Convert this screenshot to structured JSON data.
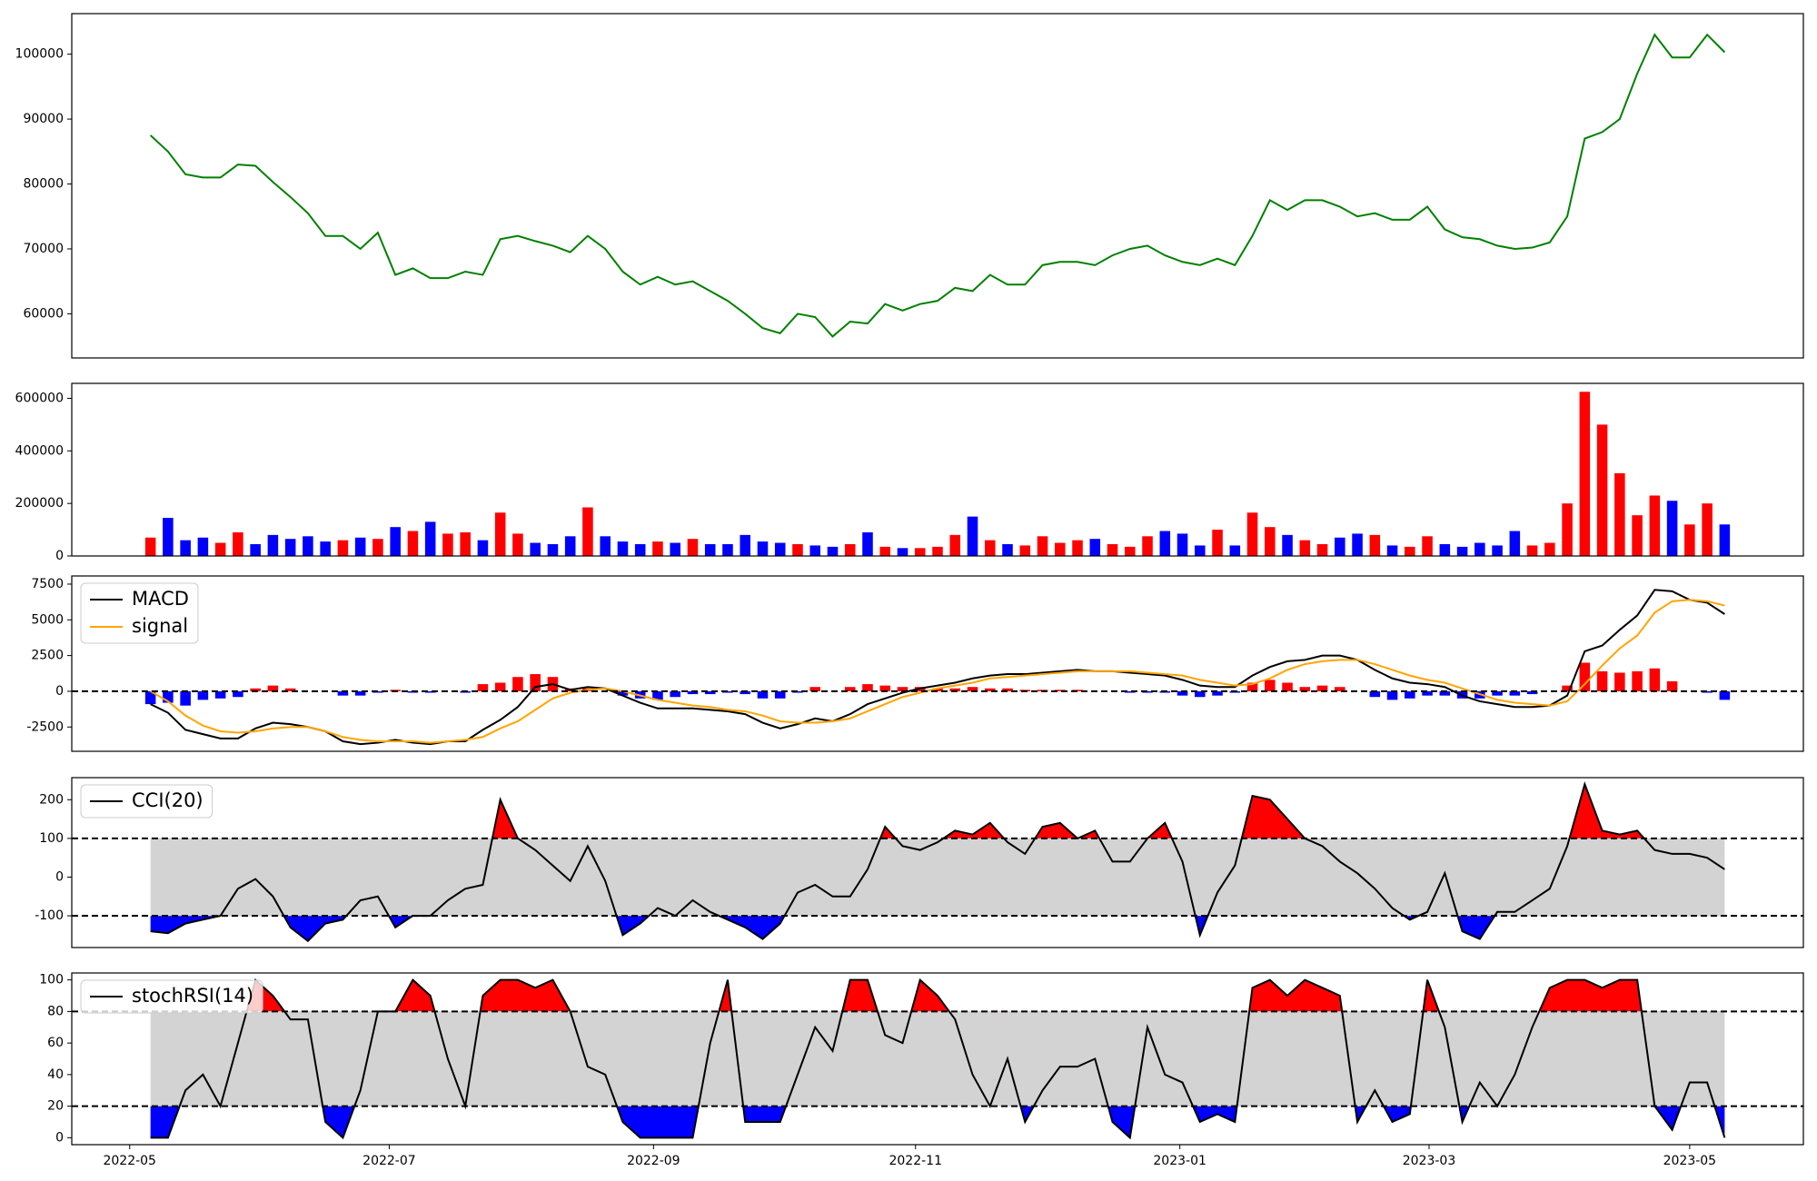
{
  "chart_data": [
    {
      "type": "line",
      "color": "green",
      "xlim": [
        -4.5,
        94.5
      ],
      "ylim": [
        53200,
        106250
      ],
      "yticks": [
        60000,
        70000,
        80000,
        90000,
        100000
      ],
      "values": [
        87500,
        85000,
        81500,
        81000,
        81000,
        83000,
        82800,
        80300,
        78000,
        75500,
        72000,
        72000,
        70000,
        72500,
        66000,
        67000,
        65500,
        65500,
        66500,
        66000,
        71500,
        72000,
        71200,
        70500,
        69500,
        72000,
        70000,
        66500,
        64500,
        65700,
        64500,
        65000,
        63500,
        62000,
        60000,
        57800,
        57000,
        60000,
        59500,
        56500,
        58800,
        58500,
        61500,
        60500,
        61500,
        62000,
        64000,
        63500,
        66000,
        64500,
        64500,
        67500,
        68000,
        68000,
        67500,
        69000,
        70000,
        70500,
        69000,
        68000,
        67500,
        68500,
        67500,
        72000,
        77500,
        76000,
        77500,
        77500,
        76500,
        75000,
        75500,
        74500,
        74500,
        76500,
        73000,
        71800,
        71500,
        70500,
        70000,
        70200,
        71000,
        75000,
        87000,
        88000,
        90000,
        97000,
        103000,
        99500,
        99500,
        103000,
        100300
      ]
    },
    {
      "type": "bar",
      "xlim": [
        -4.5,
        94.5
      ],
      "ylim": [
        0,
        657000
      ],
      "yticks": [
        0,
        200000,
        400000,
        600000
      ],
      "values": [
        70000,
        145000,
        60000,
        70000,
        50000,
        90000,
        45000,
        80000,
        65000,
        75000,
        55000,
        60000,
        70000,
        65000,
        110000,
        95000,
        130000,
        85000,
        90000,
        60000,
        165000,
        85000,
        50000,
        45000,
        75000,
        185000,
        75000,
        55000,
        45000,
        55000,
        50000,
        65000,
        45000,
        45000,
        80000,
        55000,
        50000,
        45000,
        40000,
        35000,
        45000,
        90000,
        35000,
        30000,
        30000,
        35000,
        80000,
        150000,
        60000,
        45000,
        40000,
        75000,
        50000,
        60000,
        65000,
        45000,
        35000,
        75000,
        95000,
        85000,
        40000,
        100000,
        40000,
        165000,
        110000,
        80000,
        60000,
        45000,
        70000,
        85000,
        80000,
        40000,
        35000,
        75000,
        45000,
        35000,
        50000,
        40000,
        95000,
        40000,
        50000,
        200000,
        625000,
        500000,
        315000,
        155000,
        230000,
        210000,
        120000,
        200000,
        120000
      ],
      "colors": [
        "red",
        "blue",
        "blue",
        "blue",
        "red",
        "red",
        "blue",
        "blue",
        "blue",
        "blue",
        "blue",
        "red",
        "blue",
        "red",
        "blue",
        "red",
        "blue",
        "red",
        "red",
        "blue",
        "red",
        "red",
        "blue",
        "blue",
        "blue",
        "red",
        "blue",
        "blue",
        "blue",
        "red",
        "blue",
        "red",
        "blue",
        "blue",
        "blue",
        "blue",
        "blue",
        "red",
        "blue",
        "blue",
        "red",
        "blue",
        "red",
        "blue",
        "red",
        "red",
        "red",
        "blue",
        "red",
        "blue",
        "red",
        "red",
        "red",
        "red",
        "blue",
        "red",
        "red",
        "red",
        "blue",
        "blue",
        "blue",
        "red",
        "blue",
        "red",
        "red",
        "blue",
        "red",
        "red",
        "blue",
        "blue",
        "red",
        "blue",
        "red",
        "red",
        "blue",
        "blue",
        "blue",
        "blue",
        "blue",
        "red",
        "red",
        "red",
        "red",
        "red",
        "red",
        "red",
        "red",
        "blue",
        "red",
        "red",
        "blue"
      ]
    },
    {
      "type": "line",
      "xlim": [
        -4.5,
        94.5
      ],
      "ylim": [
        -4200,
        8070
      ],
      "yticks": [
        -2500,
        0,
        2500,
        5000,
        7500
      ],
      "legend": "upper left",
      "levels": [
        0
      ],
      "series": [
        {
          "name": "MACD",
          "color": "black",
          "values": [
            -900,
            -1500,
            -2700,
            -3000,
            -3300,
            -3300,
            -2600,
            -2200,
            -2300,
            -2500,
            -2800,
            -3500,
            -3700,
            -3600,
            -3400,
            -3600,
            -3700,
            -3500,
            -3500,
            -2700,
            -2000,
            -1100,
            300,
            500,
            100,
            300,
            200,
            -300,
            -800,
            -1200,
            -1200,
            -1200,
            -1300,
            -1400,
            -1600,
            -2200,
            -2600,
            -2300,
            -1900,
            -2100,
            -1600,
            -900,
            -500,
            -100,
            200,
            400,
            600,
            900,
            1100,
            1200,
            1200,
            1300,
            1400,
            1500,
            1400,
            1400,
            1300,
            1200,
            1100,
            800,
            400,
            300,
            300,
            1100,
            1700,
            2100,
            2200,
            2500,
            2500,
            2200,
            1500,
            900,
            600,
            500,
            300,
            -300,
            -700,
            -900,
            -1100,
            -1100,
            -1000,
            -300,
            2800,
            3200,
            4300,
            5300,
            7100,
            7000,
            6400,
            6200,
            5400
          ]
        },
        {
          "name": "signal",
          "color": "orange",
          "values": [
            0,
            -700,
            -1700,
            -2400,
            -2800,
            -2900,
            -2800,
            -2600,
            -2500,
            -2500,
            -2800,
            -3200,
            -3400,
            -3500,
            -3500,
            -3500,
            -3600,
            -3500,
            -3400,
            -3200,
            -2600,
            -2100,
            -1300,
            -500,
            -100,
            100,
            200,
            0,
            -300,
            -600,
            -800,
            -1000,
            -1100,
            -1300,
            -1400,
            -1700,
            -2100,
            -2200,
            -2200,
            -2100,
            -1900,
            -1400,
            -900,
            -400,
            -100,
            200,
            400,
            600,
            900,
            1000,
            1100,
            1200,
            1300,
            1400,
            1400,
            1400,
            1400,
            1300,
            1200,
            1100,
            800,
            600,
            400,
            500,
            900,
            1500,
            1900,
            2100,
            2200,
            2200,
            1900,
            1500,
            1100,
            800,
            600,
            200,
            -200,
            -600,
            -800,
            -900,
            -1000,
            -700,
            500,
            1800,
            3000,
            3900,
            5500,
            6300,
            6400,
            6300,
            6000
          ]
        }
      ],
      "histogram": {
        "up_color": "red",
        "down_color": "blue",
        "values": [
          -900,
          -800,
          -1000,
          -600,
          -500,
          -400,
          200,
          400,
          200,
          0,
          0,
          -300,
          -300,
          -100,
          100,
          -100,
          -100,
          0,
          -100,
          500,
          600,
          1000,
          1200,
          1000,
          200,
          200,
          0,
          -300,
          -500,
          -600,
          -400,
          -200,
          -200,
          -100,
          -200,
          -500,
          -500,
          -100,
          300,
          0,
          300,
          500,
          400,
          300,
          300,
          200,
          200,
          300,
          200,
          200,
          100,
          100,
          100,
          100,
          0,
          0,
          -100,
          -100,
          -100,
          -300,
          -400,
          -300,
          -100,
          600,
          800,
          600,
          300,
          400,
          300,
          0,
          -400,
          -600,
          -500,
          -300,
          -300,
          -500,
          -500,
          -300,
          -300,
          -200,
          0,
          400,
          2000,
          1400,
          1300,
          1400,
          1600,
          700,
          0,
          -100,
          -600
        ]
      }
    },
    {
      "type": "line",
      "xlim": [
        -4.5,
        94.5
      ],
      "ylim": [
        -182,
        257
      ],
      "yticks": [
        -100,
        0,
        100,
        200
      ],
      "legend": "upper left",
      "levels": [
        100,
        -100
      ],
      "band_color": "lightgray",
      "above_color": "red",
      "below_color": "blue",
      "series": [
        {
          "name": "CCI(20)",
          "color": "black",
          "values": [
            -140,
            -145,
            -120,
            -110,
            -100,
            -30,
            -5,
            -50,
            -130,
            -165,
            -120,
            -110,
            -60,
            -50,
            -130,
            -100,
            -100,
            -60,
            -30,
            -20,
            200,
            100,
            70,
            30,
            -10,
            80,
            -10,
            -150,
            -120,
            -80,
            -100,
            -60,
            -90,
            -110,
            -130,
            -160,
            -120,
            -40,
            -20,
            -50,
            -50,
            20,
            130,
            80,
            70,
            90,
            120,
            110,
            140,
            90,
            60,
            130,
            140,
            100,
            120,
            40,
            40,
            100,
            140,
            40,
            -150,
            -40,
            30,
            210,
            200,
            150,
            100,
            80,
            40,
            10,
            -30,
            -80,
            -110,
            -90,
            10,
            -140,
            -160,
            -90,
            -90,
            -60,
            -30,
            80,
            240,
            120,
            110,
            120,
            70,
            60,
            60,
            50,
            20
          ]
        }
      ]
    },
    {
      "type": "line",
      "xlim": [
        -4.5,
        94.5
      ],
      "ylim": [
        -4.4,
        104.4
      ],
      "yticks": [
        0,
        20,
        40,
        60,
        80,
        100
      ],
      "legend": "upper left",
      "levels": [
        80,
        20
      ],
      "band_color": "lightgray",
      "above_color": "red",
      "below_color": "blue",
      "xticks": [
        {
          "value": -1.19,
          "label": "2022-05"
        },
        {
          "value": 13.65,
          "label": "2022-07"
        },
        {
          "value": 28.76,
          "label": "2022-09"
        },
        {
          "value": 43.74,
          "label": "2022-11"
        },
        {
          "value": 58.85,
          "label": "2023-01"
        },
        {
          "value": 73.1,
          "label": "2023-03"
        },
        {
          "value": 88.0,
          "label": "2023-05"
        }
      ],
      "series": [
        {
          "name": "stochRSI(14)",
          "color": "black",
          "values": [
            0,
            0,
            30,
            40,
            20,
            60,
            100,
            90,
            75,
            75,
            10,
            0,
            30,
            80,
            80,
            100,
            90,
            50,
            20,
            90,
            100,
            100,
            95,
            100,
            80,
            45,
            40,
            10,
            0,
            0,
            0,
            0,
            60,
            100,
            10,
            10,
            10,
            40,
            70,
            55,
            100,
            100,
            65,
            60,
            100,
            90,
            75,
            40,
            20,
            50,
            10,
            30,
            45,
            45,
            50,
            10,
            0,
            70,
            40,
            35,
            10,
            15,
            10,
            95,
            100,
            90,
            100,
            95,
            90,
            10,
            30,
            10,
            15,
            100,
            70,
            10,
            35,
            20,
            40,
            70,
            95,
            100,
            100,
            95,
            100,
            100,
            20,
            5,
            35,
            35,
            0
          ]
        }
      ]
    }
  ]
}
